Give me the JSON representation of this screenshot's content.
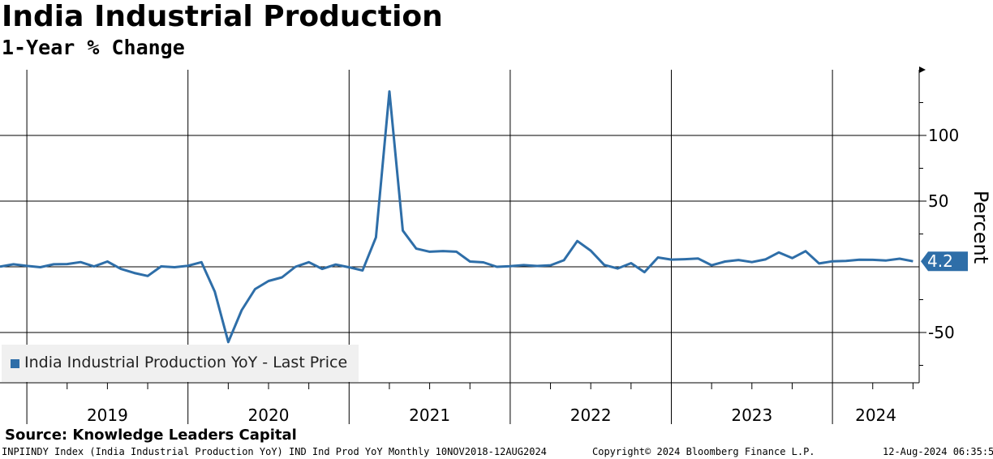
{
  "header": {
    "title": "India Industrial Production",
    "subtitle": "1-Year % Change"
  },
  "source": "Source: Knowledge Leaders Capital",
  "footer": {
    "left": "INPIINDY Index (India Industrial Production  YoY) IND Ind Prod YoY  Monthly 10NOV2018-12AUG2024",
    "middle": "Copyright© 2024 Bloomberg Finance L.P.",
    "right": "12-Aug-2024 06:35:53"
  },
  "colors": {
    "series": "#2e6ea8",
    "label_bg": "#2e6ea8",
    "grid": "#000000",
    "legend_bg": "#f0f0f0"
  },
  "chart_data": {
    "type": "line",
    "title": "India Industrial Production",
    "subtitle": "1-Year % Change",
    "ylabel": "Percent",
    "ylim": [
      -88,
      150
    ],
    "yticks": [
      -50,
      50,
      100
    ],
    "zero_line": true,
    "x_start": "2018-11",
    "x_end": "2024-06",
    "year_labels": [
      "2019",
      "2020",
      "2021",
      "2022",
      "2023",
      "2024"
    ],
    "last_value_label": "4.2",
    "legend": "India Industrial Production YoY - Last Price",
    "series": [
      {
        "name": "India Industrial Production YoY - Last Price",
        "values": [
          0.1,
          1.9,
          0.7,
          -0.3,
          1.9,
          2.1,
          3.6,
          0.3,
          4.0,
          -1.6,
          -4.7,
          -7.0,
          0.3,
          -0.3,
          0.8,
          3.5,
          -19.0,
          -57.3,
          -33.0,
          -17.0,
          -10.8,
          -8.0,
          0.0,
          3.5,
          -1.6,
          1.7,
          -0.4,
          -2.8,
          22.4,
          133.5,
          27.6,
          13.8,
          11.5,
          12.0,
          11.5,
          4.0,
          3.4,
          0.0,
          0.5,
          1.3,
          0.6,
          1.2,
          5.0,
          19.6,
          12.3,
          1.4,
          -1.3,
          2.8,
          -4.1,
          7.1,
          5.5,
          5.8,
          6.3,
          1.2,
          4.0,
          5.2,
          3.6,
          5.6,
          10.9,
          6.6,
          11.9,
          2.5,
          4.2,
          4.5,
          5.4,
          5.3,
          4.8,
          6.2,
          4.2
        ]
      }
    ]
  }
}
